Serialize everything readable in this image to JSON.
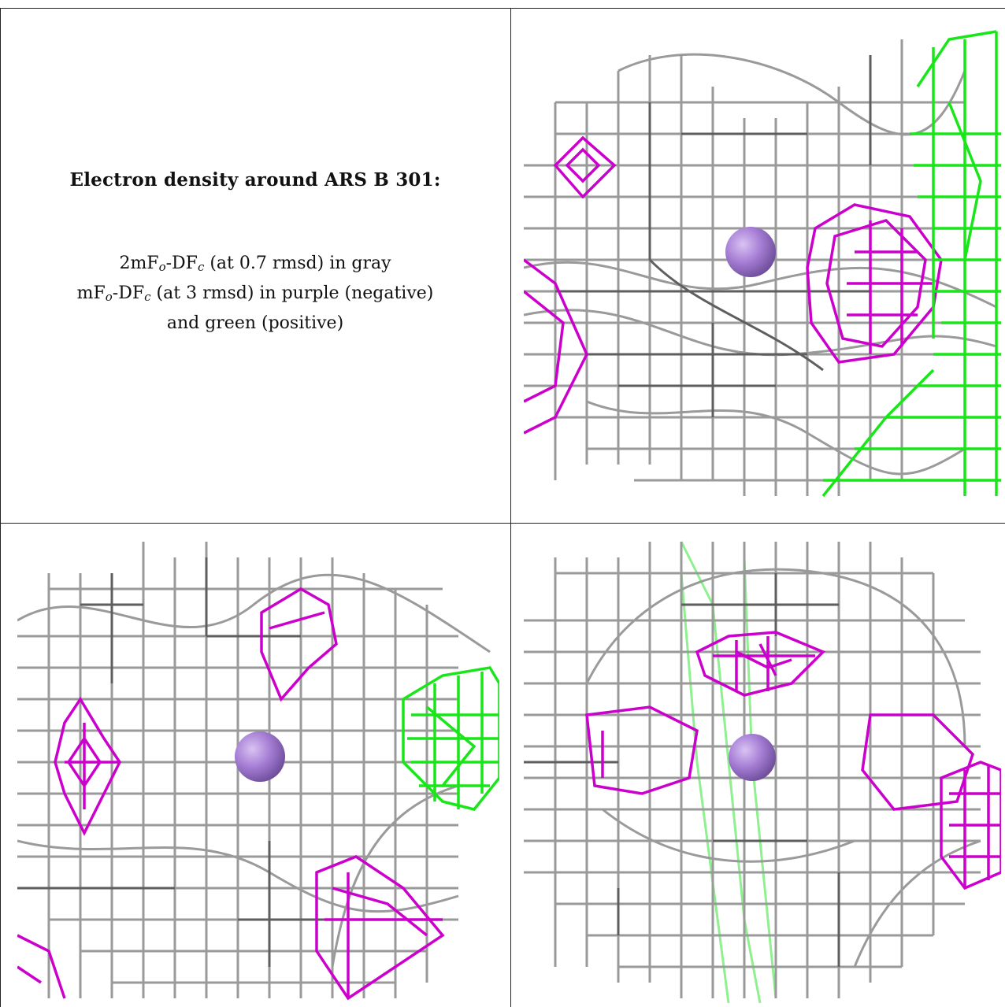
{
  "caption": {
    "title": "Electron density around ARS B 301:",
    "line1": {
      "pre": "2mF",
      "sub1": "o",
      "mid": "-DF",
      "sub2": "c",
      "post": " (at 0.7 rmsd) in gray"
    },
    "line2": {
      "pre": "mF",
      "sub1": "o",
      "mid": "-DF",
      "sub2": "c",
      "post": " (at 3 rmsd) in purple (negative)"
    },
    "line3": "and green (positive)"
  },
  "colors": {
    "gray_mesh": "#9a9a9a",
    "dark_mesh": "#5e5e5e",
    "negative": "#cc00cc",
    "positive": "#19e619",
    "atom": "#a77fd6"
  },
  "panels": [
    {
      "view": "top-right",
      "atom": "ARS B 301"
    },
    {
      "view": "bottom-left",
      "atom": "ARS B 301"
    },
    {
      "view": "bottom-right",
      "atom": "ARS B 301"
    }
  ]
}
